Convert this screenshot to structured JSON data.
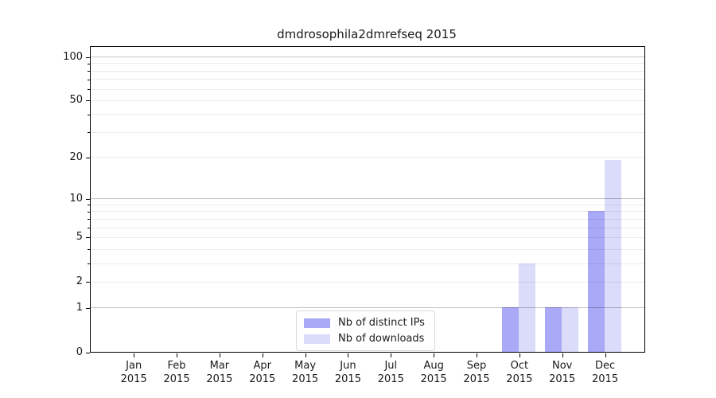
{
  "chart_data": {
    "type": "bar",
    "title": "dmdrosophila2dmrefseq 2015",
    "x": {
      "categories": [
        "Jan",
        "Feb",
        "Mar",
        "Apr",
        "May",
        "Jun",
        "Jul",
        "Aug",
        "Sep",
        "Oct",
        "Nov",
        "Dec"
      ],
      "year": "2015"
    },
    "y_axis": {
      "scale": "log1p",
      "labeled_ticks": [
        0,
        1,
        2,
        5,
        10,
        20,
        50,
        100
      ],
      "grid_major": [
        1,
        10,
        100
      ],
      "grid_minor": [
        2,
        3,
        4,
        5,
        6,
        7,
        8,
        9,
        20,
        30,
        40,
        50,
        60,
        70,
        80,
        90
      ],
      "range": [
        0,
        100
      ],
      "grid": true
    },
    "series": [
      {
        "name": "Nb of distinct IPs",
        "color": "#a9a9f7",
        "values": [
          0,
          0,
          0,
          0,
          0,
          0,
          0,
          0,
          0,
          1,
          1,
          8
        ]
      },
      {
        "name": "Nb of downloads",
        "color": "#dbdbfa",
        "values": [
          0,
          0,
          0,
          0,
          0,
          0,
          0,
          0,
          0,
          3,
          1,
          19
        ]
      }
    ],
    "legend": {
      "position": "lower-center",
      "entries": [
        "Nb of distinct IPs",
        "Nb of downloads"
      ]
    },
    "colors": {
      "axis": "#000000",
      "text": "#1a1a1a",
      "background": "#ffffff",
      "grid_major_overlay": "rgba(0,0,0,0.24)",
      "grid_minor_overlay": "rgba(0,0,0,0.075)",
      "legend_border": "#d8d8d8"
    }
  }
}
